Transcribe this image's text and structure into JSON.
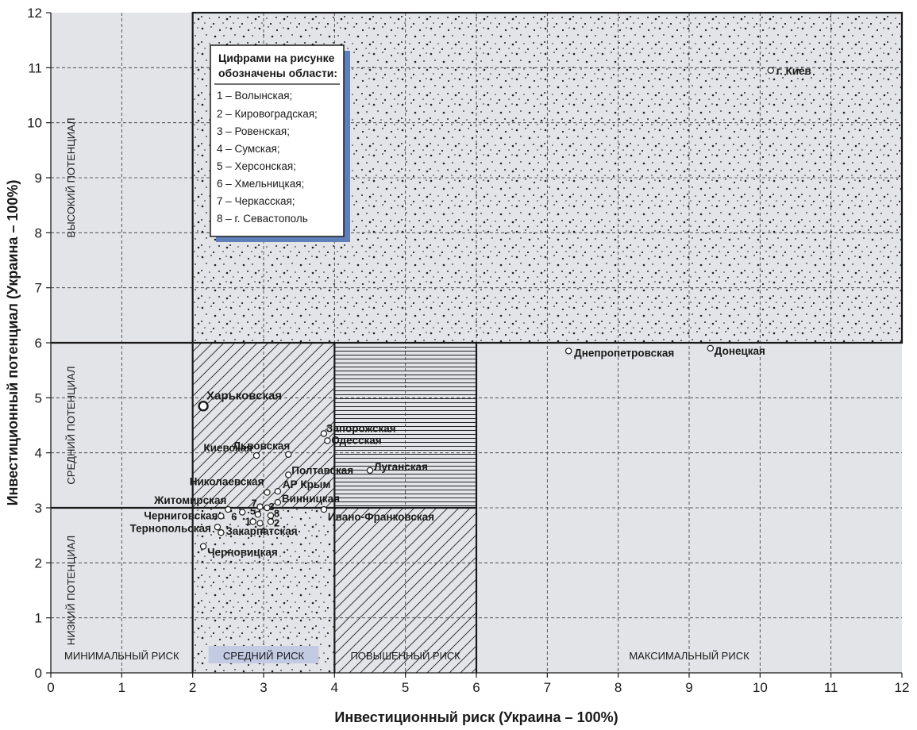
{
  "chart_data": {
    "type": "scatter",
    "xlabel": "Инвестиционный риск (Украина – 100%)",
    "ylabel": "Инвестиционный потенциал (Украина – 100%)",
    "xlim": [
      0,
      12
    ],
    "ylim": [
      0,
      12
    ],
    "x_ticks": [
      "0",
      "1",
      "2",
      "3",
      "4",
      "5",
      "6",
      "7",
      "8",
      "9",
      "10",
      "11",
      "12"
    ],
    "y_ticks": [
      "0",
      "1",
      "2",
      "3",
      "4",
      "5",
      "6",
      "7",
      "8",
      "9",
      "10",
      "11",
      "12"
    ],
    "grid": true,
    "risk_zones": [
      {
        "label": "МИНИМАЛЬНЫЙ РИСК",
        "x_range": [
          0,
          2
        ]
      },
      {
        "label": "СРЕДНИЙ РИСК",
        "x_range": [
          2,
          4
        ]
      },
      {
        "label": "ПОВЫШЕННЫЙ РИСК",
        "x_range": [
          4,
          6
        ]
      },
      {
        "label": "МАКСИМАЛЬНЫЙ РИСК",
        "x_range": [
          6,
          12
        ]
      }
    ],
    "potential_zones": [
      {
        "label": "НИЗКИЙ ПОТЕНЦИАЛ",
        "y_range": [
          0,
          3
        ]
      },
      {
        "label": "СРЕДНИЙ ПОТЕНЦИАЛ",
        "y_range": [
          3,
          6
        ]
      },
      {
        "label": "ВЫСОКИЙ ПОТЕНЦИАЛ",
        "y_range": [
          6,
          12
        ]
      }
    ],
    "points": [
      {
        "label": "г. Киев",
        "x": 10.15,
        "y": 10.95
      },
      {
        "label": "Днепропетровская",
        "x": 7.3,
        "y": 5.85
      },
      {
        "label": "Донецкая",
        "x": 9.3,
        "y": 5.9
      },
      {
        "label": "Харьковская",
        "x": 2.15,
        "y": 4.85
      },
      {
        "label": "Запорожская",
        "x": 3.85,
        "y": 4.35
      },
      {
        "label": "Одесская",
        "x": 3.9,
        "y": 4.22
      },
      {
        "label": "Киевская",
        "x": 2.9,
        "y": 3.95
      },
      {
        "label": "Львовская",
        "x": 3.35,
        "y": 3.97
      },
      {
        "label": "Луганская",
        "x": 4.5,
        "y": 3.68
      },
      {
        "label": "Полтавская",
        "x": 3.35,
        "y": 3.6
      },
      {
        "label": "Николаевская",
        "x": 3.05,
        "y": 3.28
      },
      {
        "label": "АР Крым",
        "x": 3.2,
        "y": 3.3
      },
      {
        "label": "Винницкая",
        "x": 3.2,
        "y": 3.1
      },
      {
        "label": "Житомирская",
        "x": 2.5,
        "y": 2.97
      },
      {
        "label": "Черниговская",
        "x": 2.4,
        "y": 2.85
      },
      {
        "label": "Ивано-Франковская",
        "x": 3.85,
        "y": 2.97
      },
      {
        "label": "Закарпатская",
        "x": 2.4,
        "y": 2.55
      },
      {
        "label": "Тернопольская",
        "x": 2.35,
        "y": 2.65
      },
      {
        "label": "Черновицкая",
        "x": 2.15,
        "y": 2.3
      },
      {
        "label": "1",
        "x": 2.85,
        "y": 2.75
      },
      {
        "label": "2",
        "x": 3.1,
        "y": 2.75
      },
      {
        "label": "3",
        "x": 3.05,
        "y": 3.0
      },
      {
        "label": "4",
        "x": 2.95,
        "y": 2.72
      },
      {
        "label": "5",
        "x": 2.92,
        "y": 2.88
      },
      {
        "label": "6",
        "x": 2.7,
        "y": 2.92
      },
      {
        "label": "7",
        "x": 2.95,
        "y": 3.02
      },
      {
        "label": "8",
        "x": 3.1,
        "y": 2.86
      }
    ]
  },
  "legend": {
    "title_line1": "Цифрами на рисунке",
    "title_line2": "обозначены области:",
    "items": [
      "1 – Волынская;",
      "2 – Кировоградская;",
      "3 – Ровенская;",
      "4 – Сумская;",
      "5 – Херсонская;",
      "6 – Хмельницкая;",
      "7 – Черкасская;",
      "8 – г. Севастополь"
    ]
  },
  "colors": {
    "background": "#e3e4e7",
    "legend_shadow": "#5f7fb8",
    "medium_risk_label_bg": "#c3cbe3",
    "lines": "#1a1a1a"
  }
}
